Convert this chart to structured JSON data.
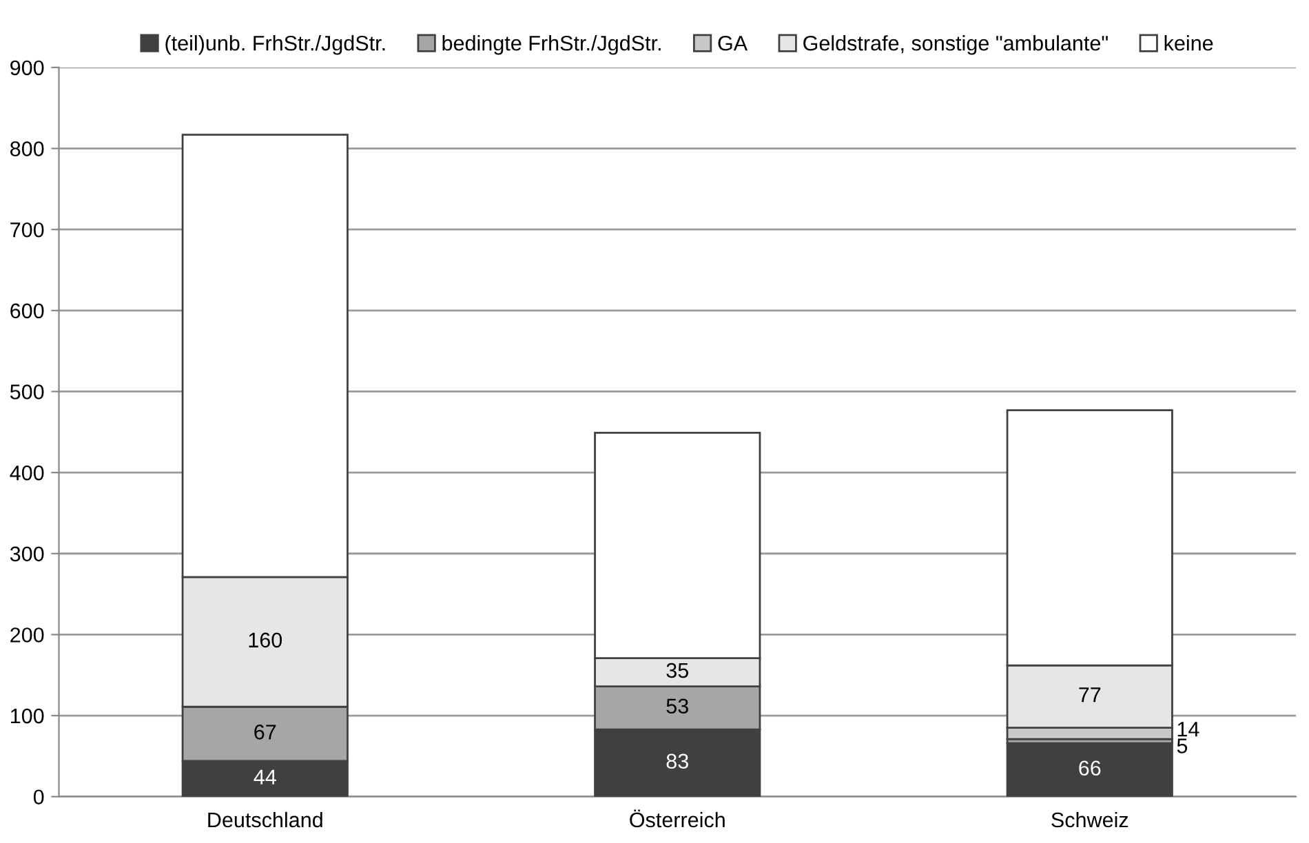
{
  "chart_data": {
    "type": "bar",
    "stacked": true,
    "categories": [
      "Deutschland",
      "Österreich",
      "Schweiz"
    ],
    "series": [
      {
        "name": "(teil)unb. FrhStr./JgdStr.",
        "color": "#404040",
        "values": [
          44,
          83,
          66
        ],
        "value_labels": [
          "44",
          "83",
          "66"
        ]
      },
      {
        "name": "bedingte FrhStr./JgdStr.",
        "color": "#a6a6a6",
        "values": [
          67,
          53,
          5
        ],
        "value_labels": [
          "67",
          "53",
          "5"
        ]
      },
      {
        "name": "GA",
        "color": "#c8c8c8",
        "values": [
          0,
          0,
          14
        ],
        "value_labels": [
          null,
          null,
          "14"
        ]
      },
      {
        "name": "Geldstrafe, sonstige \"ambulante\"",
        "color": "#e6e6e6",
        "values": [
          160,
          35,
          77
        ],
        "value_labels": [
          "160",
          "35",
          "77"
        ]
      },
      {
        "name": "keine",
        "color": "#ffffff",
        "values": [
          546,
          278,
          315
        ],
        "value_labels": [
          null,
          null,
          null
        ]
      }
    ],
    "ylim": [
      0,
      900
    ],
    "yticks": [
      0,
      100,
      200,
      300,
      400,
      500,
      600,
      700,
      800,
      900
    ],
    "grid": "y",
    "legend": "top"
  }
}
